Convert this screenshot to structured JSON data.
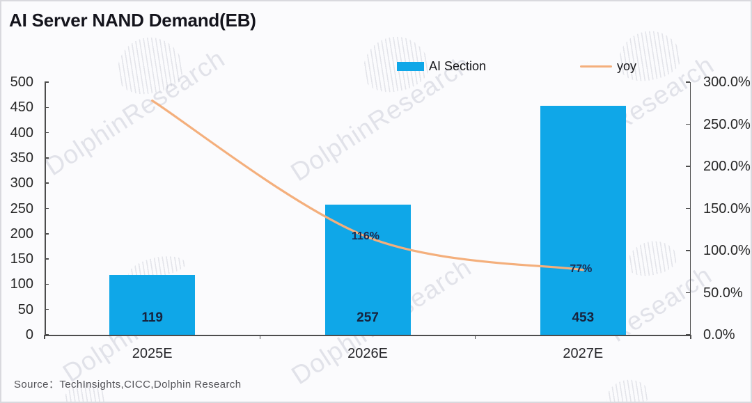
{
  "title": "AI Server NAND Demand(EB)",
  "source": "Source：TechInsights,CICC,Dolphin  Research",
  "legend": {
    "bar_label": "AI Section",
    "line_label": "yoy"
  },
  "watermark": {
    "full": "DolphinResearch",
    "research": "Research",
    "dolphin": "Dolphin"
  },
  "colors": {
    "bar": "#0fa7e8",
    "line": "#f4af7c",
    "title": "#14141c",
    "axis": "#4d4d4d",
    "background": "#fbfbfd"
  },
  "chart_data": {
    "type": "bar",
    "title": "AI Server NAND Demand(EB)",
    "categories": [
      "2025E",
      "2026E",
      "2027E"
    ],
    "series": [
      {
        "name": "AI Section",
        "type": "bar",
        "axis": "left",
        "unit": "EB",
        "values": [
          119,
          257,
          453
        ]
      },
      {
        "name": "yoy",
        "type": "line",
        "axis": "right",
        "unit": "%",
        "values": [
          278,
          116,
          77
        ],
        "point_labels": [
          "",
          "116%",
          "77%"
        ]
      }
    ],
    "left_axis": {
      "min": 0,
      "max": 500,
      "step": 50,
      "tick_labels": [
        "500",
        "450",
        "400",
        "350",
        "300",
        "250",
        "200",
        "150",
        "100",
        "50",
        "0"
      ]
    },
    "right_axis": {
      "min": 0,
      "max": 300,
      "step": 50,
      "tick_labels": [
        "300.0%",
        "250.0%",
        "200.0%",
        "150.0%",
        "100.0%",
        "50.0%",
        "0.0%"
      ]
    },
    "grid": false,
    "legend_position": "top"
  }
}
